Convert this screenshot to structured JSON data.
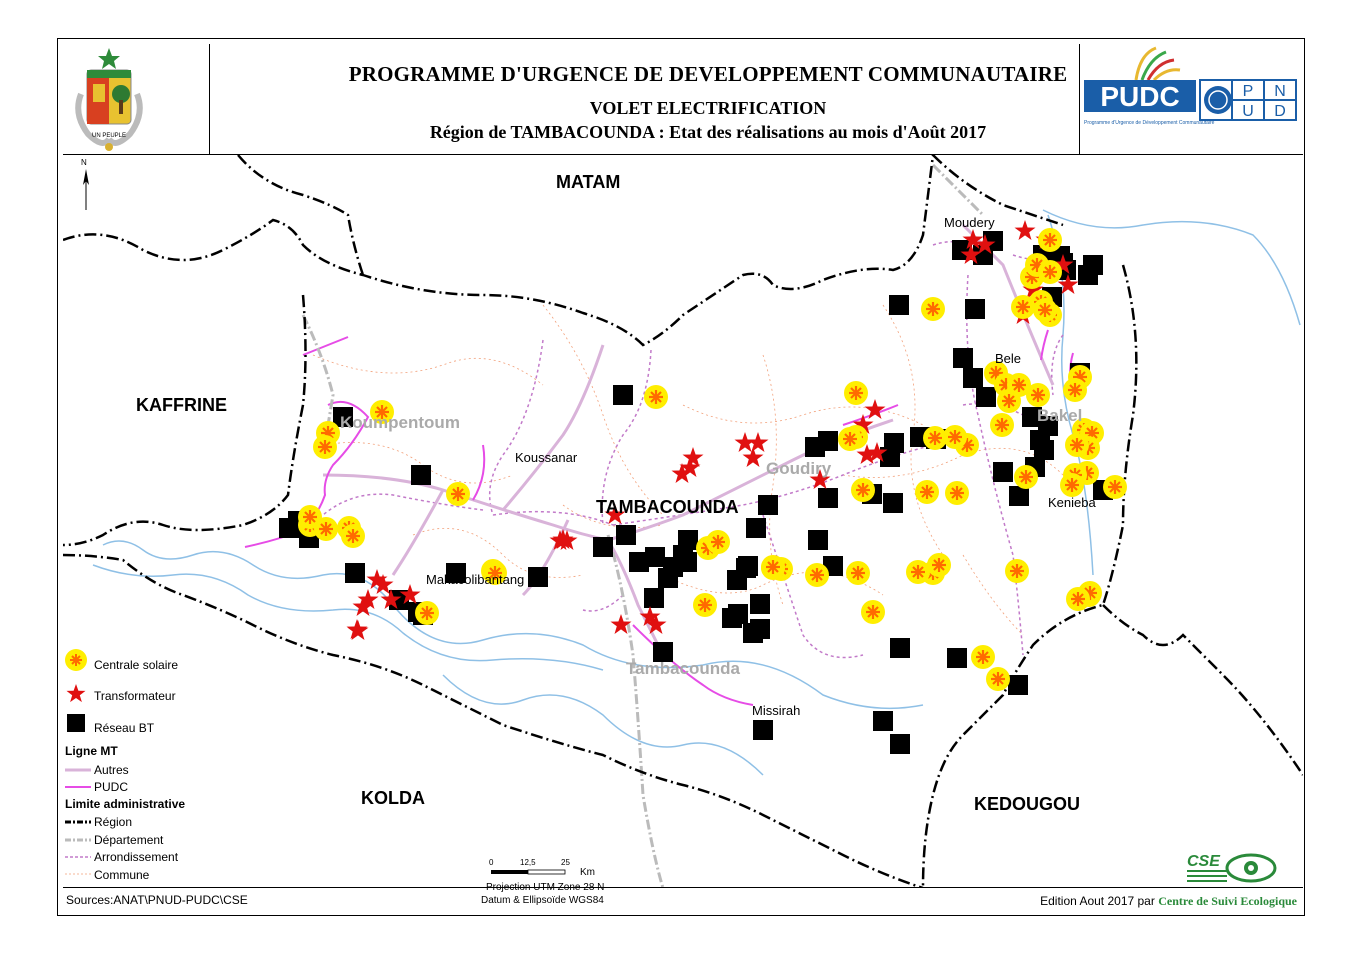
{
  "title": {
    "line1": "PROGRAMME D'URGENCE DE DEVELOPPEMENT COMMUNAUTAIRE",
    "line2": "VOLET ELECTRIFICATION",
    "line3": "Région de TAMBACOUNDA : Etat des réalisations au mois d'Août 2017"
  },
  "logos": {
    "pudc": "PUDC",
    "pudc_sub": "Programme d'Urgence de Développement Communautaire",
    "pnud": [
      "P",
      "N",
      "U",
      "D"
    ],
    "cse": "CSE"
  },
  "north_arrow": "N",
  "regions": {
    "matam": "MATAM",
    "kaffrine": "KAFFRINE",
    "tambacounda": "TAMBACOUNDA",
    "kolda": "KOLDA",
    "kedougou": "KEDOUGOU"
  },
  "departments": {
    "koumpentoum": "Koumpentoum",
    "goudiry": "Goudiry",
    "bakel": "Bakel",
    "tambacounda": "Tambacounda"
  },
  "localities": {
    "moudery": "Moudery",
    "bele": "Bele",
    "koussanar": "Koussanar",
    "makacolibantang": "Makacolibantang",
    "kenieba": "Kenieba",
    "missirah": "Missirah"
  },
  "legend": {
    "centrale": "Centrale solaire",
    "transfo": "Transformateur",
    "reseau": "Réseau BT",
    "ligne_mt": "Ligne MT",
    "autres": "Autres",
    "pudc": "PUDC",
    "limite": "Limite administrative",
    "region": "Région",
    "departement": "Département",
    "arrondissement": "Arrondissement",
    "commune": "Commune"
  },
  "scale": {
    "t0": "0",
    "t1": "12,5",
    "t2": "25",
    "unit": "Km"
  },
  "projection": {
    "line1": "Projection UTM Zone 28 N",
    "line2": "Datum & Ellipsoïde WGS84"
  },
  "sources": "Sources:ANAT\\PNUD-PUDC\\CSE",
  "edition": {
    "prefix": "Edition Aout 2017 par",
    "org": "Centre de Suivi Ecologique"
  },
  "colors": {
    "river": "#8fc0e6",
    "pudc_line": "#e64ce6",
    "autres_line": "#d9b3d9",
    "arrondissement": "#c27ac9",
    "commune": "#f2a07a",
    "star": "#e01010",
    "sun": "#ffee00",
    "sun_core": "#ff6a00"
  }
}
